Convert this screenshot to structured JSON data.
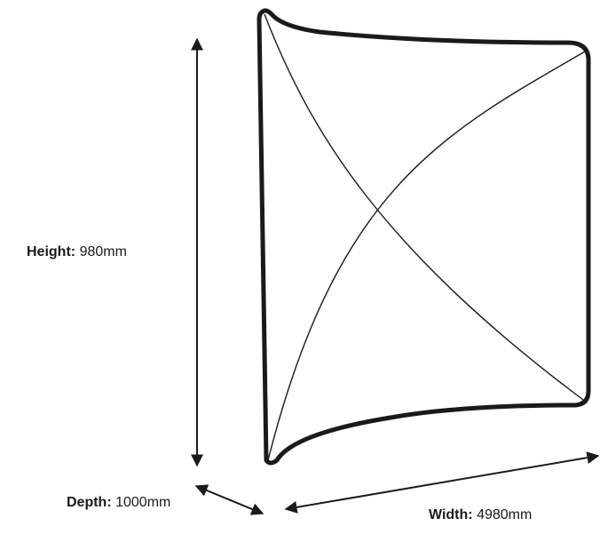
{
  "dimensions": {
    "height": {
      "label": "Height:",
      "value": "980mm"
    },
    "depth": {
      "label": "Depth:",
      "value": "1000mm"
    },
    "width": {
      "label": "Width:",
      "value": "4980mm"
    }
  },
  "colors": {
    "frame": "#1a1a1a",
    "fabric_lines": "#1a1a1a",
    "arrows": "#1a1a1a",
    "background": "#ffffff"
  }
}
